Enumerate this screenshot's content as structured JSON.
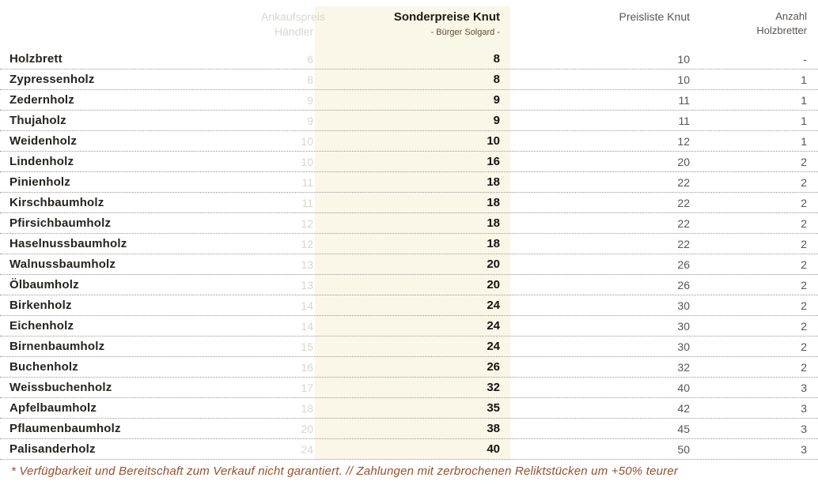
{
  "header": {
    "purchase_price_line1": "Ankaufspreis",
    "purchase_price_line2": "Händler",
    "special_price_title": "Sonderpreise Knut",
    "special_price_subtitle": "- Bürger Solgard -",
    "price_list": "Preisliste Knut",
    "quantity_line1": "Anzahl",
    "quantity_line2": "Holzbretter"
  },
  "rows": [
    {
      "name": "Holzbrett",
      "purchase": "6",
      "special": "8",
      "list": "10",
      "quantity": "-"
    },
    {
      "name": "Zypressenholz",
      "purchase": "8",
      "special": "8",
      "list": "10",
      "quantity": "1"
    },
    {
      "name": "Zedernholz",
      "purchase": "9",
      "special": "9",
      "list": "11",
      "quantity": "1"
    },
    {
      "name": "Thujaholz",
      "purchase": "9",
      "special": "9",
      "list": "11",
      "quantity": "1"
    },
    {
      "name": "Weidenholz",
      "purchase": "10",
      "special": "10",
      "list": "12",
      "quantity": "1"
    },
    {
      "name": "Lindenholz",
      "purchase": "10",
      "special": "16",
      "list": "20",
      "quantity": "2"
    },
    {
      "name": "Pinienholz",
      "purchase": "11",
      "special": "18",
      "list": "22",
      "quantity": "2"
    },
    {
      "name": "Kirschbaumholz",
      "purchase": "11",
      "special": "18",
      "list": "22",
      "quantity": "2"
    },
    {
      "name": "Pfirsichbaumholz",
      "purchase": "12",
      "special": "18",
      "list": "22",
      "quantity": "2"
    },
    {
      "name": "Haselnussbaumholz",
      "purchase": "12",
      "special": "18",
      "list": "22",
      "quantity": "2"
    },
    {
      "name": "Walnussbaumholz",
      "purchase": "13",
      "special": "20",
      "list": "26",
      "quantity": "2"
    },
    {
      "name": "Ölbaumholz",
      "purchase": "13",
      "special": "20",
      "list": "26",
      "quantity": "2"
    },
    {
      "name": "Birkenholz",
      "purchase": "14",
      "special": "24",
      "list": "30",
      "quantity": "2"
    },
    {
      "name": "Eichenholz",
      "purchase": "14",
      "special": "24",
      "list": "30",
      "quantity": "2"
    },
    {
      "name": "Birnenbaumholz",
      "purchase": "15",
      "special": "24",
      "list": "30",
      "quantity": "2"
    },
    {
      "name": "Buchenholz",
      "purchase": "16",
      "special": "26",
      "list": "32",
      "quantity": "2"
    },
    {
      "name": "Weissbuchenholz",
      "purchase": "17",
      "special": "32",
      "list": "40",
      "quantity": "3"
    },
    {
      "name": "Apfelbaumholz",
      "purchase": "18",
      "special": "35",
      "list": "42",
      "quantity": "3"
    },
    {
      "name": "Pflaumenbaumholz",
      "purchase": "20",
      "special": "38",
      "list": "45",
      "quantity": "3"
    },
    {
      "name": "Palisanderholz",
      "purchase": "24",
      "special": "40",
      "list": "50",
      "quantity": "3"
    }
  ],
  "footnote": {
    "text": "* Verfügbarkeit und Bereitschaft zum Verkauf nicht garantiert. // Zahlungen mit zerbrochenen Reliktstücken um +50% teurer"
  },
  "colors": {
    "highlight_column_background": "#faf7e8",
    "faded_text": "#d9d6cf",
    "primary_text": "#26231f",
    "secondary_text": "#585450",
    "subtitle_brown": "#5c4936",
    "footnote_rust": "#96502b"
  }
}
